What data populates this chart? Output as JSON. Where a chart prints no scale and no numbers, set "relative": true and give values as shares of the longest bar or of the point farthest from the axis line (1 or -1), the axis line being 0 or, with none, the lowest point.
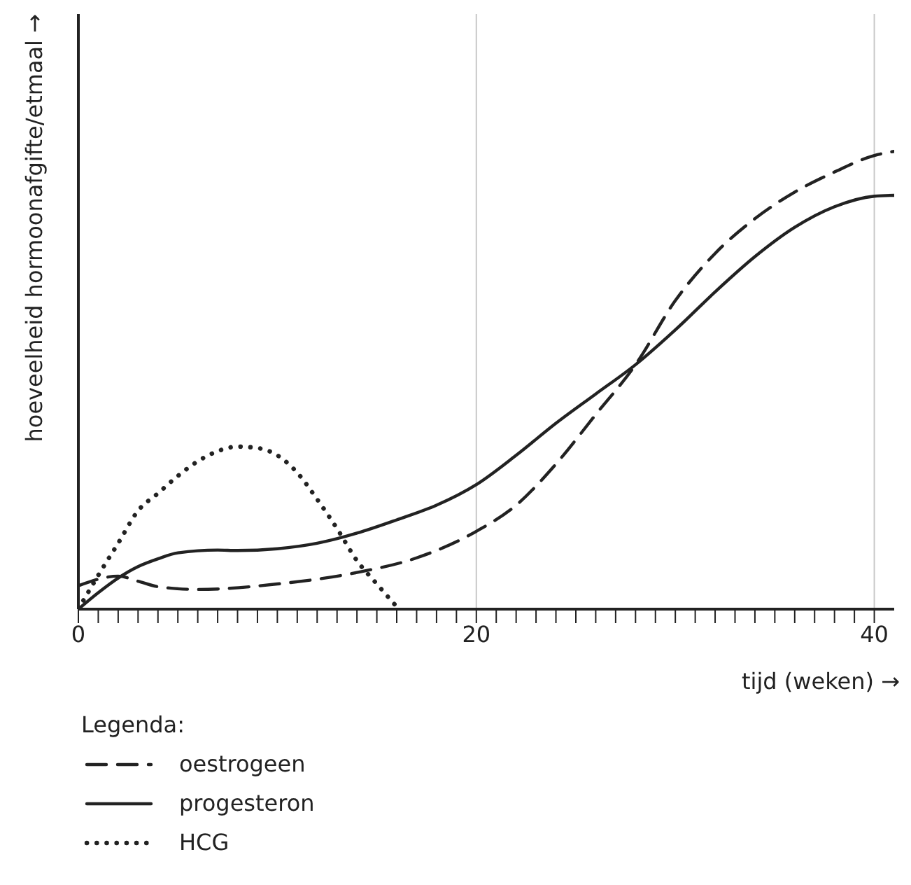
{
  "chart_data": {
    "type": "line",
    "relative": true,
    "xlabel": "tijd (weken) →",
    "ylabel": "hoeveelheid hormoonafgifte/etmaal →",
    "legend_title": "Legenda:",
    "legend": "bottom",
    "grid": "x",
    "xlim": [
      0,
      41
    ],
    "xticks": [
      0,
      {
        "value": 1,
        "label": null
      },
      {
        "value": 2,
        "label": null
      },
      {
        "value": 3,
        "label": null
      },
      {
        "value": 4,
        "label": null
      },
      {
        "value": 5,
        "label": null
      },
      {
        "value": 6,
        "label": null
      },
      {
        "value": 7,
        "label": null
      },
      {
        "value": 8,
        "label": null
      },
      {
        "value": 9,
        "label": null
      },
      {
        "value": 10,
        "label": null
      },
      {
        "value": 11,
        "label": null
      },
      {
        "value": 12,
        "label": null
      },
      {
        "value": 13,
        "label": null
      },
      {
        "value": 14,
        "label": null
      },
      {
        "value": 15,
        "label": null
      },
      {
        "value": 16,
        "label": null
      },
      {
        "value": 17,
        "label": null
      },
      {
        "value": 18,
        "label": null
      },
      {
        "value": 19,
        "label": null
      },
      20,
      {
        "value": 21,
        "label": null
      },
      {
        "value": 22,
        "label": null
      },
      {
        "value": 23,
        "label": null
      },
      {
        "value": 24,
        "label": null
      },
      {
        "value": 25,
        "label": null
      },
      {
        "value": 26,
        "label": null
      },
      {
        "value": 27,
        "label": null
      },
      {
        "value": 28,
        "label": null
      },
      {
        "value": 29,
        "label": null
      },
      {
        "value": 30,
        "label": null
      },
      {
        "value": 31,
        "label": null
      },
      {
        "value": 32,
        "label": null
      },
      {
        "value": 33,
        "label": null
      },
      {
        "value": 34,
        "label": null
      },
      {
        "value": 35,
        "label": null
      },
      {
        "value": 36,
        "label": null
      },
      {
        "value": 37,
        "label": null
      },
      {
        "value": 38,
        "label": null
      },
      {
        "value": 39,
        "label": null
      },
      40
    ],
    "marker": "none",
    "series": [
      {
        "name": "oestrogeen",
        "color": "#222222",
        "line_style": "dashed",
        "x": [
          0,
          2,
          3,
          4,
          6,
          10,
          14,
          17,
          20,
          22,
          24,
          26,
          28,
          30,
          32,
          34,
          36,
          38,
          40,
          41
        ],
        "values": [
          0.051,
          0.072,
          0.061,
          0.049,
          0.043,
          0.055,
          0.08,
          0.112,
          0.17,
          0.227,
          0.317,
          0.425,
          0.534,
          0.674,
          0.777,
          0.853,
          0.911,
          0.955,
          0.991,
          1
        ]
      },
      {
        "name": "progesteron",
        "color": "#222222",
        "line_style": "solid",
        "x": [
          0,
          1,
          2,
          3,
          4,
          5,
          7,
          8,
          10,
          12,
          14,
          16,
          18,
          20,
          22,
          24,
          26,
          28,
          30,
          32,
          34,
          36,
          38,
          40,
          41
        ],
        "values": [
          0,
          0.036,
          0.068,
          0.093,
          0.11,
          0.123,
          0.129,
          0.128,
          0.132,
          0.144,
          0.166,
          0.195,
          0.227,
          0.272,
          0.336,
          0.406,
          0.47,
          0.534,
          0.61,
          0.693,
          0.77,
          0.834,
          0.879,
          0.902,
          0.904
        ]
      },
      {
        "name": "HCG",
        "color": "#222222",
        "line_style": "dotted",
        "x": [
          0,
          1,
          2,
          3,
          4,
          5,
          6,
          7,
          8,
          9,
          10,
          11,
          12,
          13,
          14,
          15,
          15.9
        ],
        "values": [
          0,
          0.074,
          0.144,
          0.215,
          0.253,
          0.291,
          0.323,
          0.345,
          0.355,
          0.352,
          0.336,
          0.298,
          0.24,
          0.176,
          0.106,
          0.055,
          0.01
        ]
      }
    ]
  }
}
